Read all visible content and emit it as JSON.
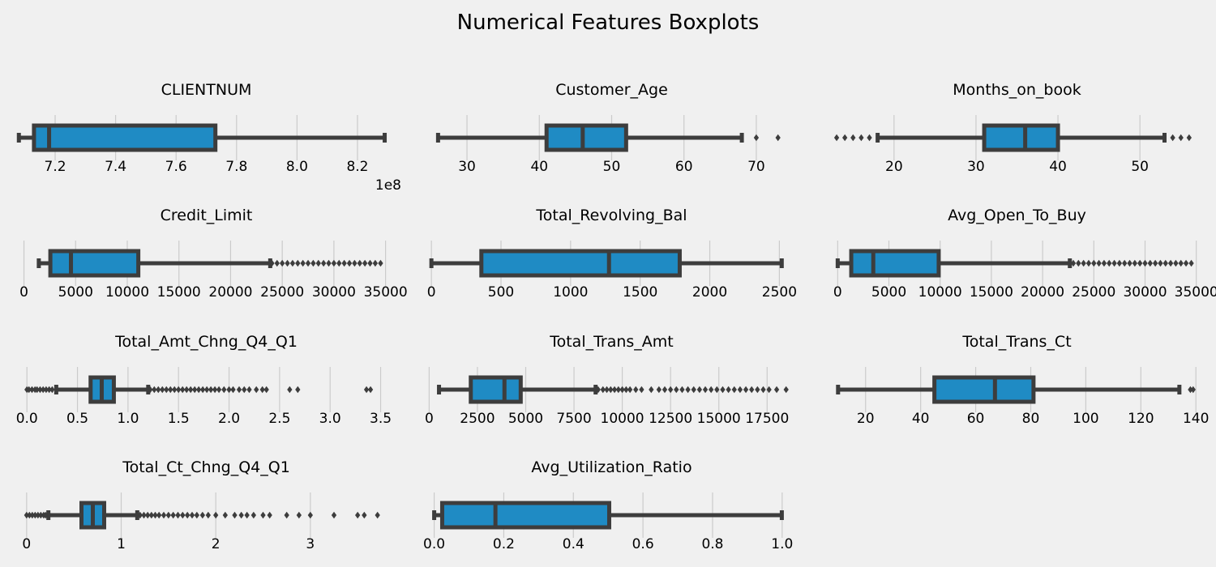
{
  "title": "Numerical Features Boxplots",
  "colors": {
    "background": "#f0f0f0",
    "box": "#1f8bc4",
    "line": "#3d3d3d",
    "grid": "#cbcbcb"
  },
  "chart_data": [
    {
      "type": "boxplot",
      "title": "CLIENTNUM",
      "scale_label": "1e8",
      "xlim": [
        7.09,
        8.31
      ],
      "ticks": [
        {
          "v": 7.2,
          "l": "7.2"
        },
        {
          "v": 7.4,
          "l": "7.4"
        },
        {
          "v": 7.6,
          "l": "7.6"
        },
        {
          "v": 7.8,
          "l": "7.8"
        },
        {
          "v": 8.0,
          "l": "8.0"
        },
        {
          "v": 8.2,
          "l": "8.2"
        }
      ],
      "whislo": 7.08,
      "q1": 7.13,
      "med": 7.18,
      "q3": 7.73,
      "whishi": 8.29,
      "fliers": []
    },
    {
      "type": "boxplot",
      "title": "Customer_Age",
      "xlim": [
        24.5,
        75.5
      ],
      "ticks": [
        {
          "v": 30,
          "l": "30"
        },
        {
          "v": 40,
          "l": "40"
        },
        {
          "v": 50,
          "l": "50"
        },
        {
          "v": 60,
          "l": "60"
        },
        {
          "v": 70,
          "l": "70"
        }
      ],
      "whislo": 26,
      "q1": 41,
      "med": 46,
      "q3": 52,
      "whishi": 68,
      "fliers": [
        70,
        73
      ]
    },
    {
      "type": "boxplot",
      "title": "Months_on_book",
      "xlim": [
        12.5,
        57.5
      ],
      "ticks": [
        {
          "v": 20,
          "l": "20"
        },
        {
          "v": 30,
          "l": "30"
        },
        {
          "v": 40,
          "l": "40"
        },
        {
          "v": 50,
          "l": "50"
        }
      ],
      "whislo": 18,
      "q1": 31,
      "med": 36,
      "q3": 40,
      "whishi": 53,
      "fliers": [
        13,
        14,
        15,
        16,
        17,
        54,
        55,
        56
      ]
    },
    {
      "type": "boxplot",
      "title": "Credit_Limit",
      "xlim": [
        -200,
        35500
      ],
      "ticks": [
        {
          "v": 0,
          "l": "0"
        },
        {
          "v": 5000,
          "l": "5000"
        },
        {
          "v": 10000,
          "l": "10000"
        },
        {
          "v": 15000,
          "l": "15000"
        },
        {
          "v": 20000,
          "l": "20000"
        },
        {
          "v": 25000,
          "l": "25000"
        },
        {
          "v": 30000,
          "l": "30000"
        },
        {
          "v": 35000,
          "l": "35000"
        }
      ],
      "whislo": 1438,
      "q1": 2555,
      "med": 4549,
      "q3": 11068,
      "whishi": 23836,
      "fliers": [
        24000,
        24500,
        25000,
        25500,
        26000,
        26500,
        27000,
        27500,
        28000,
        28500,
        29000,
        29500,
        30000,
        30500,
        31000,
        31500,
        32000,
        32500,
        33000,
        33500,
        34000,
        34516
      ]
    },
    {
      "type": "boxplot",
      "title": "Total_Revolving_Bal",
      "xlim": [
        -30,
        2620
      ],
      "ticks": [
        {
          "v": 0,
          "l": "0"
        },
        {
          "v": 500,
          "l": "500"
        },
        {
          "v": 1000,
          "l": "1000"
        },
        {
          "v": 1500,
          "l": "1500"
        },
        {
          "v": 2000,
          "l": "2000"
        },
        {
          "v": 2500,
          "l": "2500"
        }
      ],
      "whislo": 0,
      "q1": 359,
      "med": 1276,
      "q3": 1784,
      "whishi": 2517,
      "fliers": []
    },
    {
      "type": "boxplot",
      "title": "Avg_Open_To_Buy",
      "xlim": [
        -500,
        35500
      ],
      "ticks": [
        {
          "v": 0,
          "l": "0"
        },
        {
          "v": 5000,
          "l": "5000"
        },
        {
          "v": 10000,
          "l": "10000"
        },
        {
          "v": 15000,
          "l": "15000"
        },
        {
          "v": 20000,
          "l": "20000"
        },
        {
          "v": 25000,
          "l": "25000"
        },
        {
          "v": 30000,
          "l": "30000"
        },
        {
          "v": 35000,
          "l": "35000"
        }
      ],
      "whislo": 3,
      "q1": 1324,
      "med": 3474,
      "q3": 9859,
      "whishi": 22660,
      "fliers": [
        23000,
        23500,
        24000,
        24500,
        25000,
        25500,
        26000,
        26500,
        27000,
        27500,
        28000,
        28500,
        29000,
        29500,
        30000,
        30500,
        31000,
        31500,
        32000,
        32500,
        33000,
        33500,
        34000,
        34516
      ]
    },
    {
      "type": "boxplot",
      "title": "Total_Amt_Chng_Q4_Q1",
      "xlim": [
        -0.05,
        3.6
      ],
      "ticks": [
        {
          "v": 0.0,
          "l": "0.0"
        },
        {
          "v": 0.5,
          "l": "0.5"
        },
        {
          "v": 1.0,
          "l": "1.0"
        },
        {
          "v": 1.5,
          "l": "1.5"
        },
        {
          "v": 2.0,
          "l": "2.0"
        },
        {
          "v": 2.5,
          "l": "2.5"
        },
        {
          "v": 3.0,
          "l": "3.0"
        },
        {
          "v": 3.5,
          "l": "3.5"
        }
      ],
      "whislo": 0.29,
      "q1": 0.63,
      "med": 0.74,
      "q3": 0.86,
      "whishi": 1.2,
      "fliers": [
        0.0,
        0.02,
        0.05,
        0.08,
        0.1,
        0.13,
        0.16,
        0.19,
        0.22,
        0.25,
        1.22,
        1.26,
        1.3,
        1.34,
        1.38,
        1.42,
        1.46,
        1.5,
        1.54,
        1.58,
        1.62,
        1.66,
        1.7,
        1.74,
        1.78,
        1.82,
        1.86,
        1.9,
        1.95,
        2.0,
        2.04,
        2.1,
        2.15,
        2.2,
        2.27,
        2.33,
        2.37,
        2.6,
        2.68,
        3.36,
        3.4
      ]
    },
    {
      "type": "boxplot",
      "title": "Total_Trans_Amt",
      "xlim": [
        -100,
        19000
      ],
      "ticks": [
        {
          "v": 0,
          "l": "0"
        },
        {
          "v": 2500,
          "l": "2500"
        },
        {
          "v": 5000,
          "l": "5000"
        },
        {
          "v": 7500,
          "l": "7500"
        },
        {
          "v": 10000,
          "l": "10000"
        },
        {
          "v": 12500,
          "l": "12500"
        },
        {
          "v": 15000,
          "l": "15000"
        },
        {
          "v": 17500,
          "l": "17500"
        }
      ],
      "whislo": 510,
      "q1": 2156,
      "med": 3899,
      "q3": 4741,
      "whishi": 8620,
      "fliers": [
        8750,
        9000,
        9200,
        9400,
        9600,
        9800,
        10000,
        10200,
        10400,
        10700,
        11000,
        11500,
        11900,
        12200,
        12500,
        12800,
        13100,
        13400,
        13700,
        14000,
        14300,
        14600,
        14900,
        15200,
        15500,
        15800,
        16100,
        16400,
        16700,
        17000,
        17300,
        17600,
        17995,
        18484
      ]
    },
    {
      "type": "boxplot",
      "title": "Total_Trans_Ct",
      "xlim": [
        8,
        142
      ],
      "ticks": [
        {
          "v": 20,
          "l": "20"
        },
        {
          "v": 40,
          "l": "40"
        },
        {
          "v": 60,
          "l": "60"
        },
        {
          "v": 80,
          "l": "80"
        },
        {
          "v": 100,
          "l": "100"
        },
        {
          "v": 120,
          "l": "120"
        },
        {
          "v": 140,
          "l": "140"
        }
      ],
      "whislo": 10,
      "q1": 45,
      "med": 67,
      "q3": 81,
      "whishi": 134,
      "fliers": [
        138,
        139
      ]
    },
    {
      "type": "boxplot",
      "title": "Total_Ct_Chng_Q4_Q1",
      "xlim": [
        -0.05,
        3.85
      ],
      "ticks": [
        {
          "v": 0,
          "l": "0"
        },
        {
          "v": 1,
          "l": "1"
        },
        {
          "v": 2,
          "l": "2"
        },
        {
          "v": 3,
          "l": "3"
        }
      ],
      "whislo": 0.23,
      "q1": 0.58,
      "med": 0.7,
      "q3": 0.82,
      "whishi": 1.17,
      "fliers": [
        0.0,
        0.03,
        0.06,
        0.09,
        0.12,
        0.15,
        0.18,
        0.2,
        1.2,
        1.24,
        1.28,
        1.32,
        1.36,
        1.4,
        1.45,
        1.5,
        1.55,
        1.6,
        1.65,
        1.7,
        1.75,
        1.8,
        1.86,
        1.92,
        2.0,
        2.1,
        2.2,
        2.27,
        2.33,
        2.4,
        2.5,
        2.57,
        2.75,
        2.88,
        3.0,
        3.25,
        3.5,
        3.57,
        3.71
      ]
    },
    {
      "type": "boxplot",
      "title": "Avg_Utilization_Ratio",
      "xlim": [
        -0.02,
        1.04
      ],
      "ticks": [
        {
          "v": 0.0,
          "l": "0.0"
        },
        {
          "v": 0.2,
          "l": "0.2"
        },
        {
          "v": 0.4,
          "l": "0.4"
        },
        {
          "v": 0.6,
          "l": "0.6"
        },
        {
          "v": 0.8,
          "l": "0.8"
        },
        {
          "v": 1.0,
          "l": "1.0"
        }
      ],
      "whislo": 0.0,
      "q1": 0.023,
      "med": 0.176,
      "q3": 0.503,
      "whishi": 0.999,
      "fliers": []
    }
  ]
}
